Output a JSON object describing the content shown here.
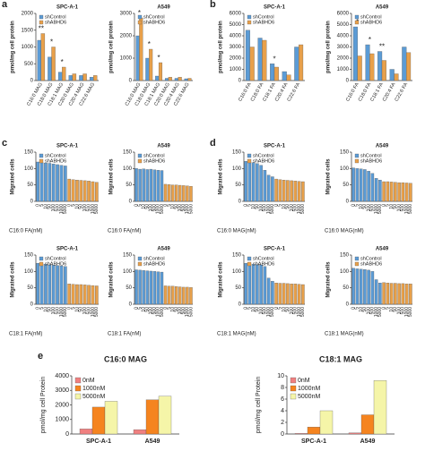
{
  "chart_data": [
    {
      "type": "bar",
      "panel": "a",
      "title": "SPC-A-1",
      "ylabel": "pmol/mg cell protein",
      "categories": [
        "C16:0 MAG",
        "C18:0 MAG",
        "C18:1 MAG",
        "C20:0 MAG",
        "C20:4 MAG",
        "C22:6 MAG"
      ],
      "series": [
        {
          "name": "shControl",
          "color": "#5b9bd5",
          "values": [
            1200,
            700,
            250,
            150,
            150,
            100
          ]
        },
        {
          "name": "shABHD6",
          "color": "#e8a04a",
          "values": [
            1400,
            1000,
            400,
            200,
            200,
            150
          ]
        }
      ],
      "ylim": [
        0,
        2000
      ],
      "yticks": [
        0,
        500,
        1000,
        1500,
        2000
      ],
      "annotations": [
        {
          "category": "C16:0 MAG",
          "text": "**"
        },
        {
          "category": "C18:0 MAG",
          "text": "*"
        },
        {
          "category": "C18:1 MAG",
          "text": "*"
        }
      ]
    },
    {
      "type": "bar",
      "title": "A549",
      "ylabel": "pmol/mg cell protein",
      "categories": [
        "C16:0 MAG",
        "C18:0 MAG",
        "C18:1 MAG",
        "C20:0 MAG",
        "C20:4 MAG",
        "C22:6 MAG"
      ],
      "series": [
        {
          "name": "shControl",
          "color": "#5b9bd5",
          "values": [
            2000,
            1000,
            200,
            100,
            100,
            80
          ]
        },
        {
          "name": "shABHD6",
          "color": "#e8a04a",
          "values": [
            2800,
            1400,
            800,
            150,
            150,
            100
          ]
        }
      ],
      "ylim": [
        0,
        3000
      ],
      "yticks": [
        0,
        1000,
        2000,
        3000
      ],
      "annotations": [
        {
          "category": "C16:0 MAG",
          "text": "*"
        },
        {
          "category": "C18:0 MAG",
          "text": "*"
        },
        {
          "category": "C18:1 MAG",
          "text": "*"
        }
      ]
    },
    {
      "type": "bar",
      "panel": "b",
      "title": "SPC-A-1",
      "ylabel": "pmol/mg cell protein",
      "categories": [
        "C16:0 FA",
        "C18:0 FA",
        "C18:1 FA",
        "C20:4 FA",
        "C22:6 FA"
      ],
      "series": [
        {
          "name": "shControl",
          "color": "#5b9bd5",
          "values": [
            4500,
            3800,
            1500,
            800,
            3000
          ]
        },
        {
          "name": "shABHD6",
          "color": "#e8a04a",
          "values": [
            3000,
            3600,
            1200,
            500,
            3200
          ]
        }
      ],
      "ylim": [
        0,
        6000
      ],
      "yticks": [
        0,
        1000,
        2000,
        3000,
        4000,
        5000,
        6000
      ],
      "annotations": [
        {
          "category": "C18:1 FA",
          "text": "*"
        }
      ]
    },
    {
      "type": "bar",
      "title": "A549",
      "ylabel": "pmol/mg cell protein",
      "categories": [
        "C16:0 FA",
        "C18:0 FA",
        "C18:1 FA",
        "C20:4 FA",
        "C22:6 FA"
      ],
      "series": [
        {
          "name": "shControl",
          "color": "#5b9bd5",
          "values": [
            4800,
            3200,
            2600,
            1000,
            3000
          ]
        },
        {
          "name": "shABHD6",
          "color": "#e8a04a",
          "values": [
            2200,
            2400,
            1800,
            600,
            2500
          ]
        }
      ],
      "ylim": [
        0,
        6000
      ],
      "yticks": [
        0,
        1000,
        2000,
        3000,
        4000,
        5000,
        6000
      ],
      "annotations": [
        {
          "category": "C16:0 FA",
          "text": "*"
        },
        {
          "category": "C18:0 FA",
          "text": "*"
        },
        {
          "category": "C18:1 FA",
          "text": "**"
        }
      ]
    },
    {
      "type": "sequential",
      "panel": "c",
      "title": "SPC-A-1",
      "ylabel": "Migrated cells",
      "xlabel": "C16:0 FA(nM)",
      "categories": [
        "0",
        "5",
        "10",
        "50",
        "100",
        "500",
        "1000",
        "5000"
      ],
      "series": [
        {
          "name": "shControl",
          "color": "#5b9bd5",
          "values": [
            120,
            118,
            117,
            116,
            114,
            112,
            110,
            108
          ]
        },
        {
          "name": "shABHD6",
          "color": "#e8a04a",
          "values": [
            68,
            66,
            65,
            64,
            63,
            62,
            60,
            58
          ]
        }
      ],
      "ylim": [
        0,
        150
      ],
      "yticks": [
        0,
        50,
        100,
        150
      ]
    },
    {
      "type": "sequential",
      "title": "A549",
      "ylabel": "Migrated cells",
      "xlabel": "C16:0 FA(nM)",
      "categories": [
        "0",
        "5",
        "10",
        "50",
        "100",
        "500",
        "1000",
        "5000"
      ],
      "series": [
        {
          "name": "shControl",
          "color": "#5b9bd5",
          "values": [
            100,
            98,
            99,
            97,
            98,
            96,
            95,
            94
          ]
        },
        {
          "name": "shABHD6",
          "color": "#e8a04a",
          "values": [
            52,
            51,
            50,
            50,
            49,
            48,
            47,
            46
          ]
        }
      ],
      "ylim": [
        0,
        150
      ],
      "yticks": [
        0,
        50,
        100,
        150
      ]
    },
    {
      "type": "sequential",
      "panel": "d",
      "title": "SPC-A-1",
      "ylabel": "Migrated cells",
      "xlabel": "C16:0 MAG(nM)",
      "categories": [
        "0",
        "5",
        "10",
        "50",
        "100",
        "500",
        "1000",
        "5000"
      ],
      "series": [
        {
          "name": "shControl",
          "color": "#5b9bd5",
          "values": [
            122,
            120,
            118,
            115,
            110,
            95,
            80,
            75
          ]
        },
        {
          "name": "shABHD6",
          "color": "#e8a04a",
          "values": [
            68,
            66,
            65,
            64,
            63,
            62,
            61,
            60
          ]
        }
      ],
      "ylim": [
        0,
        150
      ],
      "yticks": [
        0,
        50,
        100,
        150
      ]
    },
    {
      "type": "sequential",
      "title": "A549",
      "ylabel": "Migrated cells",
      "xlabel": "C16:0 MAG(nM)",
      "categories": [
        "0",
        "5",
        "10",
        "50",
        "100",
        "500",
        "1000",
        "5000"
      ],
      "series": [
        {
          "name": "shControl",
          "color": "#5b9bd5",
          "values": [
            102,
            100,
            99,
            97,
            92,
            85,
            70,
            65
          ]
        },
        {
          "name": "shABHD6",
          "color": "#e8a04a",
          "values": [
            60,
            60,
            59,
            58,
            57,
            57,
            56,
            55
          ]
        }
      ],
      "ylim": [
        0,
        150
      ],
      "yticks": [
        0,
        50,
        100,
        150
      ]
    },
    {
      "type": "sequential",
      "title": "SPC-A-1",
      "ylabel": "Migrated cells",
      "xlabel": "C18:1 FA(nM)",
      "categories": [
        "0",
        "5",
        "10",
        "50",
        "100",
        "500",
        "1000",
        "5000"
      ],
      "series": [
        {
          "name": "shControl",
          "color": "#5b9bd5",
          "values": [
            125,
            123,
            122,
            120,
            119,
            118,
            117,
            115
          ]
        },
        {
          "name": "shABHD6",
          "color": "#e8a04a",
          "values": [
            62,
            61,
            60,
            60,
            59,
            58,
            57,
            56
          ]
        }
      ],
      "ylim": [
        0,
        150
      ],
      "yticks": [
        0,
        50,
        100,
        150
      ]
    },
    {
      "type": "sequential",
      "title": "A549",
      "ylabel": "Migrated cells",
      "xlabel": "C18:1 FA(nM)",
      "categories": [
        "0",
        "5",
        "10",
        "50",
        "100",
        "500",
        "1000",
        "5000"
      ],
      "series": [
        {
          "name": "shControl",
          "color": "#5b9bd5",
          "values": [
            105,
            104,
            103,
            102,
            101,
            100,
            99,
            98
          ]
        },
        {
          "name": "shABHD6",
          "color": "#e8a04a",
          "values": [
            56,
            55,
            55,
            54,
            53,
            52,
            52,
            51
          ]
        }
      ],
      "ylim": [
        0,
        150
      ],
      "yticks": [
        0,
        50,
        100,
        150
      ]
    },
    {
      "type": "sequential",
      "title": "SPC-A-1",
      "ylabel": "Migrated cells",
      "xlabel": "C18:1 MAG(nM)",
      "categories": [
        "0",
        "5",
        "10",
        "50",
        "100",
        "500",
        "1000",
        "5000"
      ],
      "series": [
        {
          "name": "shControl",
          "color": "#5b9bd5",
          "values": [
            125,
            124,
            122,
            121,
            120,
            115,
            80,
            70
          ]
        },
        {
          "name": "shABHD6",
          "color": "#e8a04a",
          "values": [
            65,
            64,
            64,
            63,
            62,
            62,
            61,
            60
          ]
        }
      ],
      "ylim": [
        0,
        150
      ],
      "yticks": [
        0,
        50,
        100,
        150
      ]
    },
    {
      "type": "sequential",
      "title": "A549",
      "ylabel": "Migrated cells",
      "xlabel": "C18:1 MAG(nM)",
      "categories": [
        "0",
        "5",
        "10",
        "50",
        "100",
        "500",
        "1000",
        "5000"
      ],
      "series": [
        {
          "name": "shControl",
          "color": "#5b9bd5",
          "values": [
            110,
            108,
            107,
            106,
            104,
            100,
            75,
            65
          ]
        },
        {
          "name": "shABHD6",
          "color": "#e8a04a",
          "values": [
            66,
            65,
            64,
            64,
            63,
            63,
            62,
            62
          ]
        }
      ],
      "ylim": [
        0,
        150
      ],
      "yticks": [
        0,
        50,
        100,
        150
      ]
    },
    {
      "type": "bar",
      "panel": "e",
      "title": "C16:0 MAG",
      "ylabel": "pmol/mg cell Protein",
      "categories": [
        "SPC-A-1",
        "A549"
      ],
      "series": [
        {
          "name": "0nM",
          "color": "#f08080",
          "values": [
            350,
            300
          ]
        },
        {
          "name": "1000nM",
          "color": "#f5841f",
          "values": [
            1850,
            2350
          ]
        },
        {
          "name": "5000nM",
          "color": "#f5f5a8",
          "values": [
            2250,
            2600
          ]
        }
      ],
      "ylim": [
        0,
        4000
      ],
      "yticks": [
        0,
        1000,
        2000,
        3000,
        4000
      ]
    },
    {
      "type": "bar",
      "title": "C18:1 MAG",
      "ylabel": "pmol/mg cell Protein",
      "categories": [
        "SPC-A-1",
        "A549"
      ],
      "series": [
        {
          "name": "0nM",
          "color": "#f08080",
          "values": [
            0.1,
            0.2
          ]
        },
        {
          "name": "1000nM",
          "color": "#f5841f",
          "values": [
            1.2,
            3.3
          ]
        },
        {
          "name": "5000nM",
          "color": "#f5f5a8",
          "values": [
            4,
            9.2
          ]
        }
      ],
      "ylim": [
        0,
        10
      ],
      "yticks": [
        0,
        2,
        4,
        6,
        8,
        10
      ]
    }
  ]
}
